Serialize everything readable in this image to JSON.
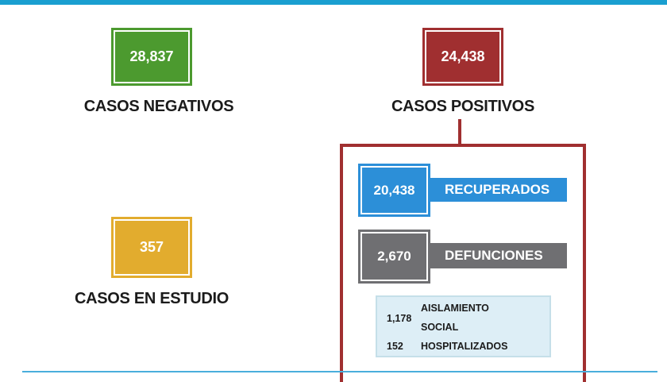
{
  "colors": {
    "top_bar": "#1a9fd0",
    "negative": "#4c9a2f",
    "positive": "#a02f30",
    "study": "#e2ac2e",
    "recovered": "#2c8fd8",
    "deaths": "#6f6f72",
    "details_bg": "#ddeef6"
  },
  "negative": {
    "value": "28,837",
    "label": "CASOS NEGATIVOS"
  },
  "positive": {
    "value": "24,438",
    "label": "CASOS POSITIVOS"
  },
  "study": {
    "value": "357",
    "label": "CASOS EN ESTUDIO"
  },
  "recovered": {
    "value": "20,438",
    "label": "RECUPERADOS"
  },
  "deaths": {
    "value": "2,670",
    "label": "DEFUNCIONES"
  },
  "isolation": {
    "value": "1,178",
    "label_line1": "AISLAMIENTO",
    "label_line2": "SOCIAL"
  },
  "hospitalized": {
    "value": "152",
    "label": "HOSPITALIZADOS"
  }
}
